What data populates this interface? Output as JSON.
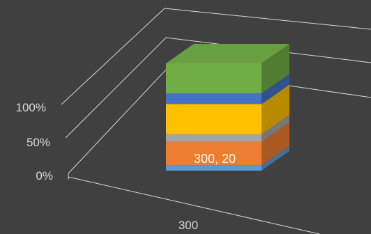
{
  "chart_data": {
    "type": "bar",
    "subtype": "3d-100%-stacked-column",
    "categories": [
      "300"
    ],
    "y_tick_labels": [
      "0%",
      "50%",
      "100%"
    ],
    "ylim": [
      0,
      1
    ],
    "grid": true,
    "legend": "none",
    "data_label": "300, 20",
    "series": [
      {
        "color": "#5b9bd5",
        "values": [
          0.05
        ]
      },
      {
        "color": "#ed7d31",
        "values": [
          0.22
        ]
      },
      {
        "color": "#a5a5a5",
        "values": [
          0.07
        ]
      },
      {
        "color": "#ffc000",
        "values": [
          0.28
        ]
      },
      {
        "color": "#4472c4",
        "values": [
          0.1
        ]
      },
      {
        "color": "#70ad47",
        "values": [
          0.28
        ]
      }
    ]
  }
}
